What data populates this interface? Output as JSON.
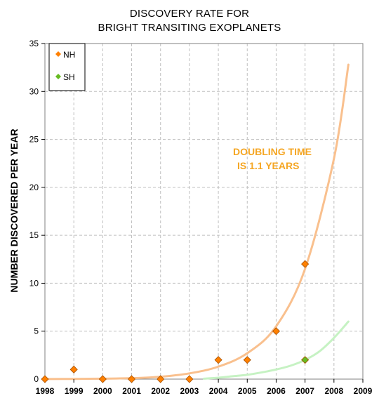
{
  "chart_data": {
    "type": "scatter",
    "title_lines": [
      "DISCOVERY RATE FOR",
      "BRIGHT TRANSITING EXOPLANETS"
    ],
    "xlabel": "",
    "ylabel": "NUMBER DISCOVERED PER YEAR",
    "xlim": [
      1998,
      2009
    ],
    "ylim": [
      0,
      35
    ],
    "x_ticks": [
      1998,
      1999,
      2000,
      2001,
      2002,
      2003,
      2004,
      2005,
      2006,
      2007,
      2008,
      2009
    ],
    "y_ticks": [
      0,
      5,
      10,
      15,
      20,
      25,
      30,
      35
    ],
    "grid": true,
    "legend_position": "top-left",
    "series": [
      {
        "name": "NH",
        "color": "#ff8000",
        "marker": "diamond",
        "x": [
          1998,
          1999,
          2000,
          2001,
          2002,
          2003,
          2004,
          2005,
          2006,
          2007
        ],
        "y": [
          0,
          1,
          0,
          0,
          0,
          0,
          2,
          2,
          5,
          12
        ]
      },
      {
        "name": "SH",
        "color": "#66bb22",
        "marker": "diamond",
        "x": [
          2007
        ],
        "y": [
          2
        ]
      }
    ],
    "fits": [
      {
        "series": "NH",
        "color": "#f9c08e",
        "x": [
          1998,
          1999,
          2000,
          2001,
          2002,
          2003,
          2004,
          2005,
          2006,
          2007,
          2008,
          2008.5
        ],
        "y": [
          0.01,
          0.02,
          0.05,
          0.1,
          0.25,
          0.6,
          1.3,
          2.7,
          5.5,
          11.5,
          23,
          32.8
        ]
      },
      {
        "series": "SH",
        "color": "#c6f2c3",
        "x": [
          2003.5,
          2004,
          2004.5,
          2005,
          2005.5,
          2006,
          2006.5,
          2007,
          2007.5,
          2008,
          2008.5
        ],
        "y": [
          0.05,
          0.15,
          0.3,
          0.45,
          0.7,
          1.0,
          1.4,
          2.0,
          2.9,
          4.3,
          6.0
        ]
      }
    ],
    "annotation": {
      "lines": [
        "DOUBLING TIME",
        "IS 1.1 YEARS"
      ],
      "color": "#f5a623"
    }
  }
}
